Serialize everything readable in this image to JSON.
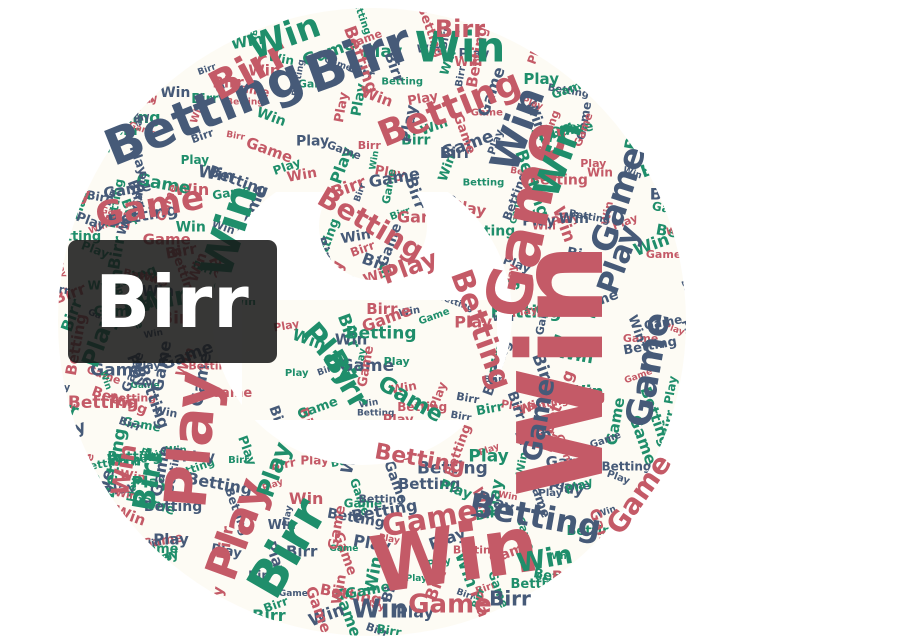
{
  "badge": {
    "label": "Birr"
  },
  "cloud": {
    "fill": "#fdfbf4",
    "colors": {
      "rose": "#c45a67",
      "green": "#1f8e6b",
      "slate": "#465a78"
    },
    "big_words": [
      {
        "text": "Win",
        "color": "rose"
      },
      {
        "text": "Win",
        "color": "rose"
      },
      {
        "text": "Game",
        "color": "rose"
      },
      {
        "text": "Betting",
        "color": "slate"
      },
      {
        "text": "Birr",
        "color": "slate"
      },
      {
        "text": "Birr",
        "color": "rose"
      },
      {
        "text": "Win",
        "color": "green"
      },
      {
        "text": "Win",
        "color": "green"
      },
      {
        "text": "Betting",
        "color": "rose"
      },
      {
        "text": "Win",
        "color": "green"
      },
      {
        "text": "Game",
        "color": "rose"
      },
      {
        "text": "Play",
        "color": "rose"
      },
      {
        "text": "Play",
        "color": "rose"
      },
      {
        "text": "Birr",
        "color": "green"
      },
      {
        "text": "Play",
        "color": "green"
      },
      {
        "text": "Birr",
        "color": "green"
      },
      {
        "text": "Win",
        "color": "green"
      },
      {
        "text": "Betting",
        "color": "slate"
      },
      {
        "text": "Game",
        "color": "rose"
      },
      {
        "text": "Game",
        "color": "slate"
      },
      {
        "text": "Game",
        "color": "slate"
      },
      {
        "text": "Betting",
        "color": "rose"
      },
      {
        "text": "Play",
        "color": "slate"
      },
      {
        "text": "Play",
        "color": "rose"
      },
      {
        "text": "Birr",
        "color": "rose"
      },
      {
        "text": "Betting",
        "color": "rose"
      },
      {
        "text": "Win",
        "color": "green"
      },
      {
        "text": "Win",
        "color": "slate"
      },
      {
        "text": "Game",
        "color": "rose"
      },
      {
        "text": "Birr",
        "color": "green"
      },
      {
        "text": "Play",
        "color": "green"
      },
      {
        "text": "Win",
        "color": "slate"
      },
      {
        "text": "Win",
        "color": "green"
      },
      {
        "text": "Play",
        "color": "green"
      },
      {
        "text": "Game",
        "color": "rose"
      },
      {
        "text": "Win",
        "color": "rose"
      },
      {
        "text": "Birr",
        "color": "slate"
      },
      {
        "text": "Game",
        "color": "slate"
      },
      {
        "text": "Betting",
        "color": "rose"
      },
      {
        "text": "Game",
        "color": "green"
      }
    ],
    "filler_words": [
      "Win",
      "Play",
      "Game",
      "Birr",
      "Betting"
    ]
  }
}
